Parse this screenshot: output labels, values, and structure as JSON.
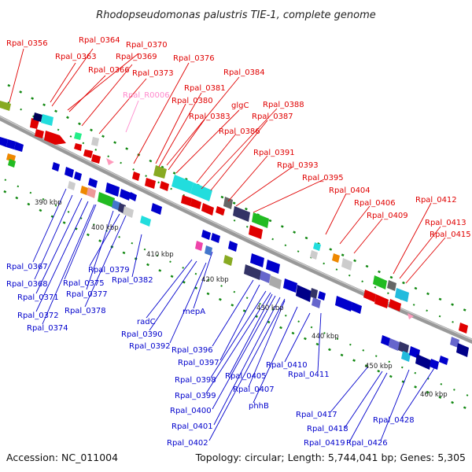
{
  "title": "Rhodopseudomonas palustris TIE-1, complete genome",
  "accession": "Accession: NC_011004",
  "topology": "Topology: circular; Length: 5,744,041 bp; Genes: 5,305",
  "kbp_ticks": [
    "390 kbp",
    "400 kbp",
    "410 kbp",
    "420 kbp",
    "430 kbp",
    "440 kbp",
    "450 kbp",
    "460 kbp"
  ],
  "top_labels": [
    "Rpal_0356",
    "Rpal_0364",
    "Rpal_0370",
    "Rpal_0363",
    "Rpal_0369",
    "Rpal_0376",
    "Rpal_0366",
    "Rpal_0373",
    "Rpal_0384",
    "Rpal_0381",
    "Rpal_R0006",
    "Rpal_0380",
    "glgC",
    "Rpal_0388",
    "Rpal_0383",
    "Rpal_0387",
    "Rpal_0386",
    "Rpal_0391",
    "Rpal_0393",
    "Rpal_0395",
    "Rpal_0404",
    "Rpal_0406",
    "Rpal_0412",
    "Rpal_0409",
    "Rpal_0413",
    "Rpal_0415"
  ],
  "bottom_labels": [
    "Rpal_0367",
    "Rpal_0368",
    "Rpal_0379",
    "Rpal_0382",
    "Rpal_0375",
    "Rpal_0371",
    "Rpal_0377",
    "Rpal_0372",
    "Rpal_0378",
    "Rpal_0374",
    "mepA",
    "radC",
    "Rpal_0390",
    "Rpal_0392",
    "Rpal_0396",
    "Rpal_0397",
    "Rpal_0410",
    "Rpal_0405",
    "Rpal_0411",
    "Rpal_0398",
    "Rpal_0407",
    "Rpal_0399",
    "phhB",
    "Rpal_0400",
    "Rpal_0417",
    "Rpal_0401",
    "Rpal_0428",
    "Rpal_0418",
    "Rpal_0402",
    "Rpal_0419",
    "Rpal_0426"
  ],
  "colors": {
    "backbone": "#999999",
    "forward_label": "#e00000",
    "reverse_label": "#0000cc",
    "rna_label": "#ff88cc",
    "grid_dot": "#118811"
  }
}
